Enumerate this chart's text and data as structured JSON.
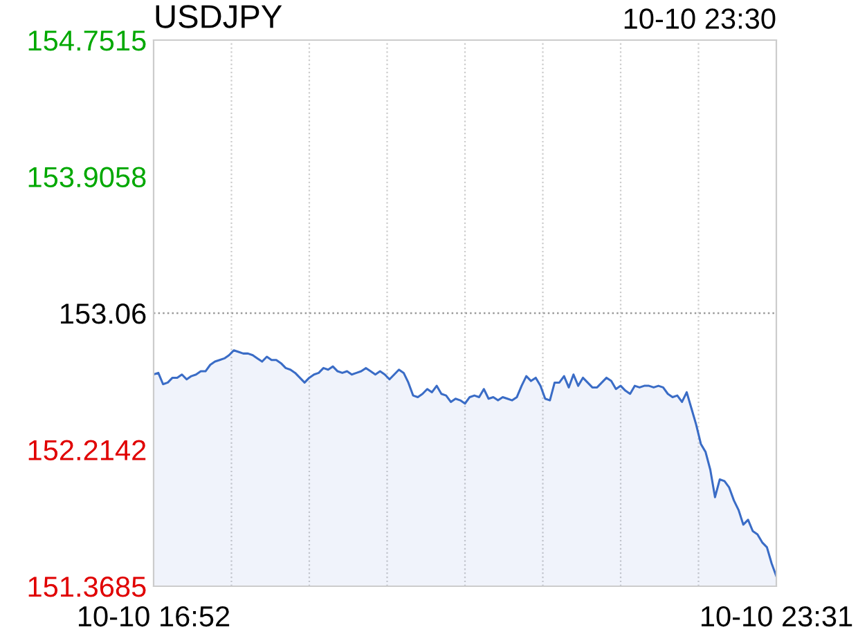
{
  "chart_data": {
    "type": "area",
    "title": "USDJPY",
    "annotations": [
      "10-10 23:30"
    ],
    "categories": [
      "10-10 16:52",
      null,
      null,
      null,
      null,
      null,
      null,
      null,
      null,
      null,
      null,
      null,
      null,
      null,
      null,
      null,
      null,
      null,
      null,
      null,
      null,
      null,
      null,
      null,
      null,
      null,
      null,
      null,
      null,
      null,
      null,
      null,
      null,
      null,
      null,
      null,
      null,
      null,
      null,
      null,
      null,
      null,
      null,
      null,
      null,
      null,
      null,
      null,
      null,
      null,
      null,
      null,
      null,
      null,
      null,
      null,
      null,
      null,
      null,
      null,
      null,
      null,
      null,
      null,
      null,
      null,
      null,
      null,
      null,
      null,
      null,
      null,
      null,
      null,
      null,
      null,
      null,
      null,
      null,
      null,
      null,
      null,
      null,
      null,
      null,
      null,
      null,
      null,
      null,
      null,
      null,
      null,
      null,
      null,
      null,
      null,
      null,
      null,
      null,
      null,
      null,
      null,
      null,
      null,
      null,
      null,
      null,
      null,
      null,
      null,
      null,
      null,
      null,
      null,
      null,
      null,
      null,
      null,
      null,
      null,
      null,
      null,
      null,
      null,
      null,
      null,
      null,
      null,
      null,
      null,
      null,
      null,
      "10-10 23:31"
    ],
    "ylim": [
      151.3685,
      154.7515
    ],
    "yticks": [
      151.3685,
      152.2142,
      153.06,
      153.9058,
      154.7515
    ],
    "grid": "x",
    "ref_lines": [
      {
        "axis": "y",
        "value": 153.06,
        "label": null,
        "color": "#999999",
        "line_style": "dotted"
      }
    ],
    "series": [
      {
        "color": "#3a6cc6",
        "values": [
          152.68,
          152.69,
          152.62,
          152.63,
          152.66,
          152.66,
          152.68,
          152.65,
          152.67,
          152.68,
          152.7,
          152.7,
          152.74,
          152.76,
          152.77,
          152.78,
          152.8,
          152.83,
          152.82,
          152.81,
          152.81,
          152.8,
          152.78,
          152.76,
          152.79,
          152.77,
          152.77,
          152.75,
          152.72,
          152.71,
          152.69,
          152.66,
          152.63,
          152.66,
          152.68,
          152.69,
          152.72,
          152.71,
          152.73,
          152.7,
          152.69,
          152.7,
          152.68,
          152.69,
          152.7,
          152.72,
          152.7,
          152.68,
          152.7,
          152.68,
          152.65,
          152.68,
          152.71,
          152.69,
          152.63,
          152.55,
          152.54,
          152.56,
          152.59,
          152.57,
          152.61,
          152.56,
          152.55,
          152.51,
          152.53,
          152.52,
          152.5,
          152.54,
          152.55,
          152.54,
          152.59,
          152.53,
          152.54,
          152.52,
          152.54,
          152.53,
          152.52,
          152.54,
          152.61,
          152.67,
          152.64,
          152.66,
          152.61,
          152.53,
          152.52,
          152.63,
          152.63,
          152.67,
          152.6,
          152.68,
          152.61,
          152.66,
          152.63,
          152.6,
          152.6,
          152.63,
          152.66,
          152.64,
          152.59,
          152.61,
          152.58,
          152.56,
          152.61,
          152.6,
          152.61,
          152.61,
          152.6,
          152.61,
          152.6,
          152.56,
          152.54,
          152.55,
          152.51,
          152.57,
          152.47,
          152.37,
          152.25,
          152.2,
          152.09,
          151.92,
          152.03,
          152.02,
          151.98,
          151.9,
          151.84,
          151.75,
          151.78,
          151.71,
          151.69,
          151.64,
          151.61,
          151.51,
          151.43
        ]
      }
    ]
  }
}
